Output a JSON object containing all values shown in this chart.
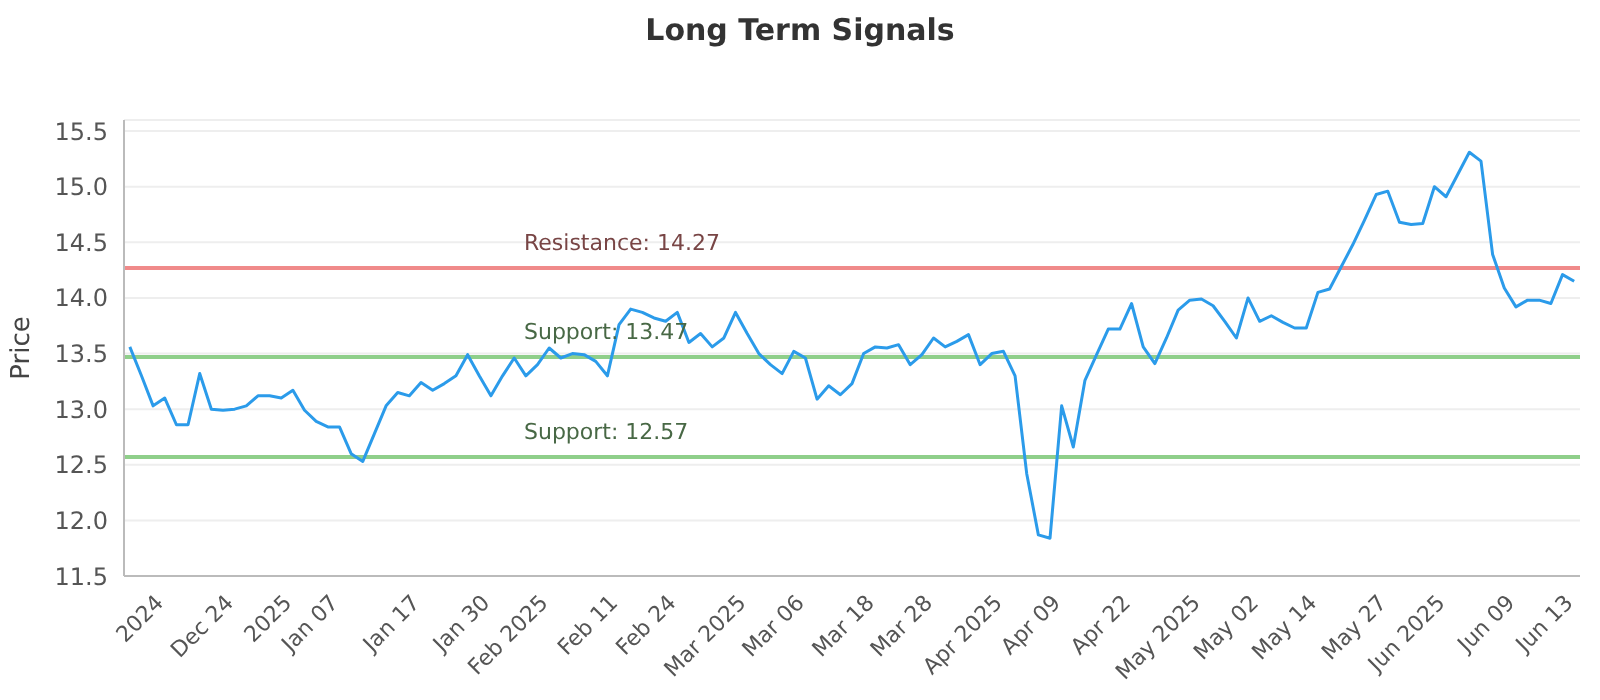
{
  "chart_data": {
    "type": "line",
    "title": "Long Term Signals",
    "ylabel": "Price",
    "categories": [
      null,
      null,
      null,
      "2024",
      null,
      null,
      null,
      null,
      null,
      "Dec 24",
      null,
      null,
      null,
      null,
      "2025",
      null,
      null,
      null,
      "Jan 07",
      null,
      null,
      null,
      null,
      null,
      null,
      "Jan 17",
      null,
      null,
      null,
      null,
      null,
      "Jan 30",
      null,
      null,
      null,
      null,
      "Feb 2025",
      null,
      null,
      null,
      null,
      null,
      "Feb 11",
      null,
      null,
      null,
      null,
      "Feb 24",
      null,
      null,
      null,
      null,
      null,
      "Mar 2025",
      null,
      null,
      null,
      null,
      "Mar 06",
      null,
      null,
      null,
      null,
      null,
      "Mar 18",
      null,
      null,
      null,
      null,
      "Mar 28",
      null,
      null,
      null,
      null,
      null,
      "Apr 2025",
      null,
      null,
      null,
      null,
      "Apr 09",
      null,
      null,
      null,
      null,
      null,
      "Apr 22",
      null,
      null,
      null,
      null,
      null,
      "May 2025",
      null,
      null,
      null,
      null,
      "May 02",
      null,
      null,
      null,
      null,
      "May 14",
      null,
      null,
      null,
      null,
      null,
      "May 27",
      null,
      null,
      null,
      null,
      "Jun 2025",
      null,
      null,
      null,
      null,
      null,
      "Jun 09",
      null,
      null,
      null,
      null,
      "Jun 13"
    ],
    "series": [
      {
        "color": "#2b9bea",
        "values": [
          13.56,
          13.3,
          13.03,
          13.1,
          12.86,
          12.86,
          13.32,
          13.0,
          12.99,
          13.0,
          13.03,
          13.12,
          13.12,
          13.1,
          13.17,
          12.99,
          12.89,
          12.84,
          12.84,
          12.6,
          12.53,
          12.78,
          13.03,
          13.15,
          13.12,
          13.24,
          13.17,
          13.23,
          13.3,
          13.49,
          13.3,
          13.12,
          13.3,
          13.46,
          13.3,
          13.4,
          13.55,
          13.46,
          13.5,
          13.49,
          13.43,
          13.3,
          13.76,
          13.9,
          13.87,
          13.82,
          13.79,
          13.87,
          13.6,
          13.68,
          13.56,
          13.64,
          13.87,
          13.68,
          13.5,
          13.4,
          13.32,
          13.52,
          13.46,
          13.09,
          13.21,
          13.13,
          13.23,
          13.5,
          13.56,
          13.55,
          13.58,
          13.4,
          13.49,
          13.64,
          13.56,
          13.61,
          13.67,
          13.4,
          13.5,
          13.52,
          13.3,
          12.42,
          11.87,
          11.84,
          13.03,
          12.66,
          13.26,
          13.49,
          13.72,
          13.72,
          13.95,
          13.56,
          13.41,
          13.64,
          13.89,
          13.98,
          13.99,
          13.93,
          13.79,
          13.64,
          14.0,
          13.79,
          13.84,
          13.78,
          13.73,
          13.73,
          14.05,
          14.08,
          14.28,
          14.48,
          14.7,
          14.93,
          14.96,
          14.68,
          14.66,
          14.67,
          15.0,
          14.91,
          15.11,
          15.31,
          15.23,
          14.39,
          14.09,
          13.92,
          13.98,
          13.98,
          13.95,
          14.21,
          14.15
        ]
      }
    ],
    "ylim": [
      11.5,
      15.6
    ],
    "yticks": [
      11.5,
      {
        "value": 12,
        "label": "12.0"
      },
      12.5,
      {
        "value": 13,
        "label": "13.0"
      },
      13.5,
      {
        "value": 14,
        "label": "14.0"
      },
      14.5,
      {
        "value": 15,
        "label": "15.0"
      },
      15.5
    ],
    "ref_lines": [
      {
        "axis": "y",
        "value": 14.27,
        "label": "Resistance: 14.27",
        "color": "#f08a8a"
      },
      {
        "axis": "y",
        "value": 13.47,
        "label": "Support: 13.47",
        "color": "#8fcf8a"
      },
      {
        "axis": "y",
        "value": 12.57,
        "label": "Support: 12.57",
        "color": "#8fcf8a"
      }
    ],
    "grid": "y",
    "marker": "none",
    "line_style": "solid"
  }
}
